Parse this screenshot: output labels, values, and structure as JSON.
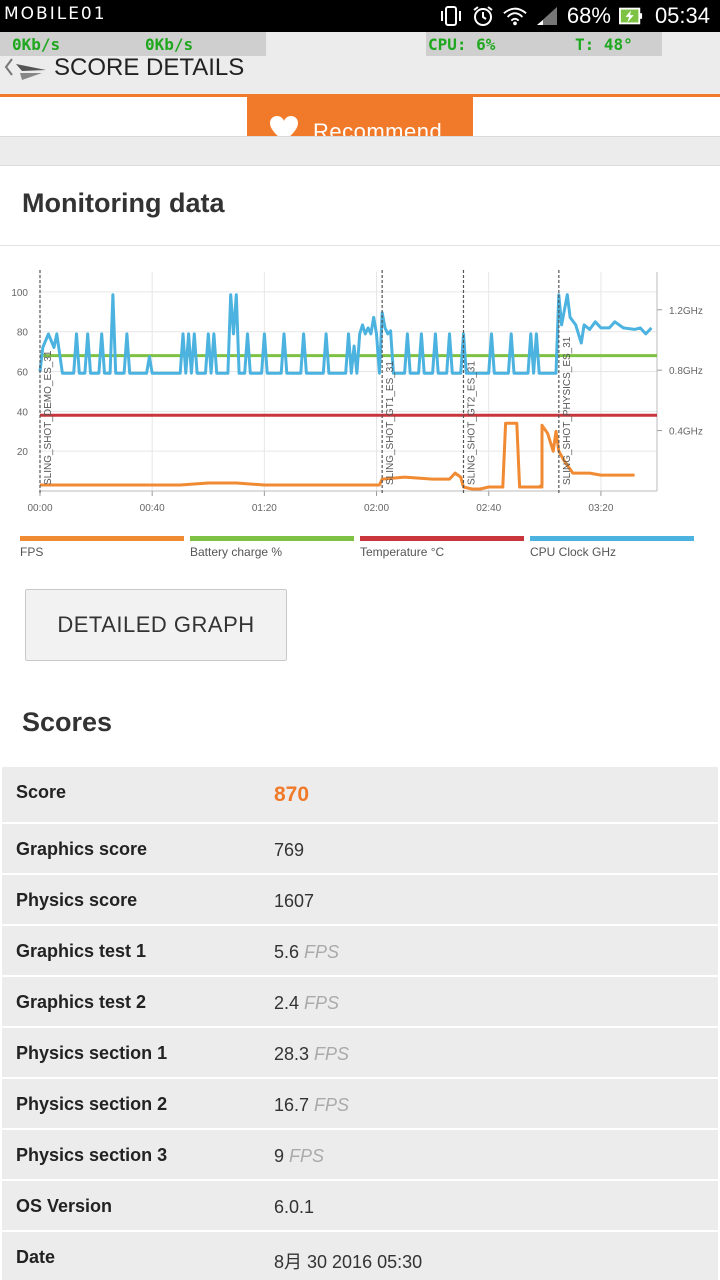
{
  "status_bar": {
    "watermark": "MOBILE01",
    "battery_percent": "68%",
    "time": "05:34",
    "icons": [
      "vibrate-icon",
      "alarm-icon",
      "wifi-icon",
      "cellular-signal-icon",
      "battery-charging-icon"
    ]
  },
  "overlay": {
    "download": "0Kb/s",
    "upload": "0Kb/s",
    "cpu": "CPU: 6%",
    "temp": "T: 48°"
  },
  "app_bar": {
    "title": "SCORE DETAILS"
  },
  "recommend": {
    "label": "Recommend"
  },
  "monitoring": {
    "title": "Monitoring data",
    "detailed_graph_label": "DETAILED GRAPH"
  },
  "chart_data": {
    "type": "line",
    "x_ticks": [
      "00:00",
      "00:40",
      "01:20",
      "02:00",
      "02:40",
      "03:20"
    ],
    "x_range_seconds": [
      0,
      220
    ],
    "y_left_ticks": [
      "20",
      "40",
      "60",
      "80",
      "100"
    ],
    "y_left_range": [
      0,
      110
    ],
    "y_right_ticks": [
      "0.4GHz",
      "0.8GHz",
      "1.2GHz"
    ],
    "y_right_range_ghz": [
      0,
      1.45
    ],
    "grid": true,
    "test_markers": [
      {
        "t": 0,
        "label": "SLING_SHOT_DEMO_ES_31"
      },
      {
        "t": 122,
        "label": "SLING_SHOT_GT1_ES_31"
      },
      {
        "t": 151,
        "label": "SLING_SHOT_GT2_ES_31"
      },
      {
        "t": 185,
        "label": "SLING_SHOT_PHYSICS_ES_31"
      }
    ],
    "legend": [
      {
        "name": "FPS",
        "color": "#f08a33"
      },
      {
        "name": "Battery charge %",
        "color": "#7dc242"
      },
      {
        "name": "Temperature °C",
        "color": "#c8363b"
      },
      {
        "name": "CPU Clock GHz",
        "color": "#4cb3e0"
      }
    ],
    "series": [
      {
        "name": "FPS",
        "axis": "left",
        "points": [
          [
            0,
            3
          ],
          [
            10,
            3
          ],
          [
            20,
            3
          ],
          [
            30,
            3
          ],
          [
            40,
            3
          ],
          [
            50,
            3
          ],
          [
            60,
            4
          ],
          [
            70,
            4
          ],
          [
            80,
            3
          ],
          [
            90,
            3
          ],
          [
            100,
            3
          ],
          [
            110,
            3
          ],
          [
            121,
            3
          ],
          [
            122,
            6
          ],
          [
            130,
            7
          ],
          [
            140,
            6
          ],
          [
            146,
            6
          ],
          [
            148,
            9
          ],
          [
            150,
            7
          ],
          [
            151,
            2
          ],
          [
            154,
            1
          ],
          [
            157,
            1
          ],
          [
            160,
            2
          ],
          [
            165,
            2
          ],
          [
            166,
            34
          ],
          [
            168,
            34
          ],
          [
            170,
            34
          ],
          [
            171,
            2
          ],
          [
            175,
            2
          ],
          [
            178,
            2
          ],
          [
            176,
            2
          ],
          [
            177,
            2
          ],
          [
            178,
            2
          ],
          [
            175,
            2
          ],
          [
            177,
            2
          ],
          [
            178,
            2
          ],
          [
            179,
            2
          ],
          [
            178,
            2
          ],
          [
            178,
            2
          ],
          [
            179,
            2
          ],
          [
            178,
            2
          ],
          [
            179,
            2
          ],
          [
            178,
            2
          ],
          [
            179,
            2
          ],
          [
            178,
            2
          ],
          [
            179,
            3
          ],
          [
            179,
            33
          ],
          [
            181,
            29
          ],
          [
            183,
            20
          ],
          [
            184,
            30
          ],
          [
            185,
            20
          ],
          [
            187,
            15
          ],
          [
            190,
            9
          ],
          [
            193,
            9
          ],
          [
            196,
            9
          ],
          [
            200,
            8
          ],
          [
            206,
            8
          ],
          [
            212,
            8
          ]
        ]
      },
      {
        "name": "Battery charge %",
        "axis": "left",
        "points": [
          [
            0,
            68
          ],
          [
            220,
            68
          ]
        ]
      },
      {
        "name": "Temperature °C",
        "axis": "left",
        "points": [
          [
            0,
            38
          ],
          [
            220,
            38
          ]
        ]
      },
      {
        "name": "CPU Clock GHz",
        "axis": "right",
        "points": [
          [
            0,
            0.79
          ],
          [
            1,
            0.95
          ],
          [
            3,
            1.04
          ],
          [
            5,
            0.95
          ],
          [
            6,
            1.04
          ],
          [
            8,
            0.78
          ],
          [
            12,
            0.78
          ],
          [
            13,
            1.04
          ],
          [
            14,
            0.78
          ],
          [
            16,
            0.78
          ],
          [
            17,
            1.04
          ],
          [
            18,
            0.78
          ],
          [
            21,
            0.78
          ],
          [
            22,
            1.04
          ],
          [
            23,
            0.78
          ],
          [
            25,
            0.78
          ],
          [
            26,
            1.3
          ],
          [
            27,
            0.78
          ],
          [
            30,
            0.78
          ],
          [
            31,
            1.04
          ],
          [
            32,
            0.78
          ],
          [
            38,
            0.78
          ],
          [
            39,
            0.89
          ],
          [
            40,
            0.78
          ],
          [
            50,
            0.78
          ],
          [
            51,
            1.04
          ],
          [
            52,
            0.78
          ],
          [
            53,
            1.04
          ],
          [
            54,
            0.78
          ],
          [
            55,
            1.04
          ],
          [
            56,
            0.78
          ],
          [
            59,
            0.78
          ],
          [
            60,
            1.04
          ],
          [
            61,
            0.78
          ],
          [
            62,
            1.04
          ],
          [
            63,
            0.78
          ],
          [
            67,
            0.78
          ],
          [
            68,
            1.3
          ],
          [
            69,
            1.04
          ],
          [
            70,
            1.3
          ],
          [
            71,
            0.78
          ],
          [
            73,
            0.78
          ],
          [
            74,
            1.04
          ],
          [
            75,
            0.78
          ],
          [
            79,
            0.78
          ],
          [
            80,
            1.04
          ],
          [
            81,
            0.78
          ],
          [
            86,
            0.78
          ],
          [
            87,
            1.04
          ],
          [
            88,
            0.78
          ],
          [
            93,
            0.78
          ],
          [
            94,
            1.04
          ],
          [
            95,
            0.78
          ],
          [
            101,
            0.78
          ],
          [
            102,
            1.04
          ],
          [
            103,
            0.78
          ],
          [
            109,
            0.78
          ],
          [
            110,
            1.04
          ],
          [
            111,
            0.78
          ],
          [
            112,
            0.96
          ],
          [
            113,
            0.78
          ],
          [
            114,
            1.04
          ],
          [
            115,
            1.1
          ],
          [
            116,
            1.04
          ],
          [
            117,
            1.08
          ],
          [
            118,
            1.04
          ],
          [
            119,
            1.15
          ],
          [
            120,
            1.04
          ],
          [
            121,
            0.78
          ],
          [
            122,
            1.18
          ],
          [
            123,
            1.08
          ],
          [
            124,
            1.04
          ],
          [
            125,
            1.06
          ],
          [
            126,
            0.78
          ],
          [
            130,
            0.78
          ],
          [
            131,
            1.04
          ],
          [
            132,
            0.78
          ],
          [
            135,
            0.78
          ],
          [
            136,
            1.04
          ],
          [
            137,
            0.78
          ],
          [
            140,
            0.78
          ],
          [
            141,
            1.04
          ],
          [
            142,
            0.78
          ],
          [
            145,
            0.78
          ],
          [
            146,
            1.04
          ],
          [
            147,
            0.78
          ],
          [
            150,
            0.78
          ],
          [
            151,
            1.04
          ],
          [
            152,
            0.78
          ],
          [
            160,
            0.78
          ],
          [
            161,
            1.04
          ],
          [
            162,
            0.78
          ],
          [
            167,
            0.78
          ],
          [
            168,
            1.04
          ],
          [
            169,
            0.78
          ],
          [
            174,
            0.78
          ],
          [
            175,
            1.04
          ],
          [
            176,
            0.78
          ],
          [
            177,
            1.04
          ],
          [
            178,
            0.78
          ],
          [
            184,
            0.78
          ],
          [
            185,
            1.3
          ],
          [
            186,
            1.1
          ],
          [
            188,
            1.3
          ],
          [
            189,
            1.15
          ],
          [
            191,
            1.1
          ],
          [
            193,
            0.98
          ],
          [
            194,
            1.1
          ],
          [
            196,
            1.07
          ],
          [
            198,
            1.12
          ],
          [
            200,
            1.08
          ],
          [
            203,
            1.08
          ],
          [
            205,
            1.12
          ],
          [
            208,
            1.08
          ],
          [
            212,
            1.07
          ],
          [
            214,
            1.08
          ],
          [
            216,
            1.04
          ],
          [
            218,
            1.08
          ]
        ]
      }
    ]
  },
  "scores": {
    "title": "Scores",
    "rows": [
      {
        "label": "Score",
        "value": "870",
        "unit": ""
      },
      {
        "label": "Graphics score",
        "value": "769",
        "unit": ""
      },
      {
        "label": "Physics score",
        "value": "1607",
        "unit": ""
      },
      {
        "label": "Graphics test 1",
        "value": "5.6",
        "unit": "FPS"
      },
      {
        "label": "Graphics test 2",
        "value": "2.4",
        "unit": "FPS"
      },
      {
        "label": "Physics section 1",
        "value": "28.3",
        "unit": "FPS"
      },
      {
        "label": "Physics section 2",
        "value": "16.7",
        "unit": "FPS"
      },
      {
        "label": "Physics section 3",
        "value": "9",
        "unit": "FPS"
      },
      {
        "label": "OS Version",
        "value": "6.0.1",
        "unit": ""
      },
      {
        "label": "Date",
        "value": "8月 30 2016 05:30",
        "unit": ""
      }
    ]
  }
}
